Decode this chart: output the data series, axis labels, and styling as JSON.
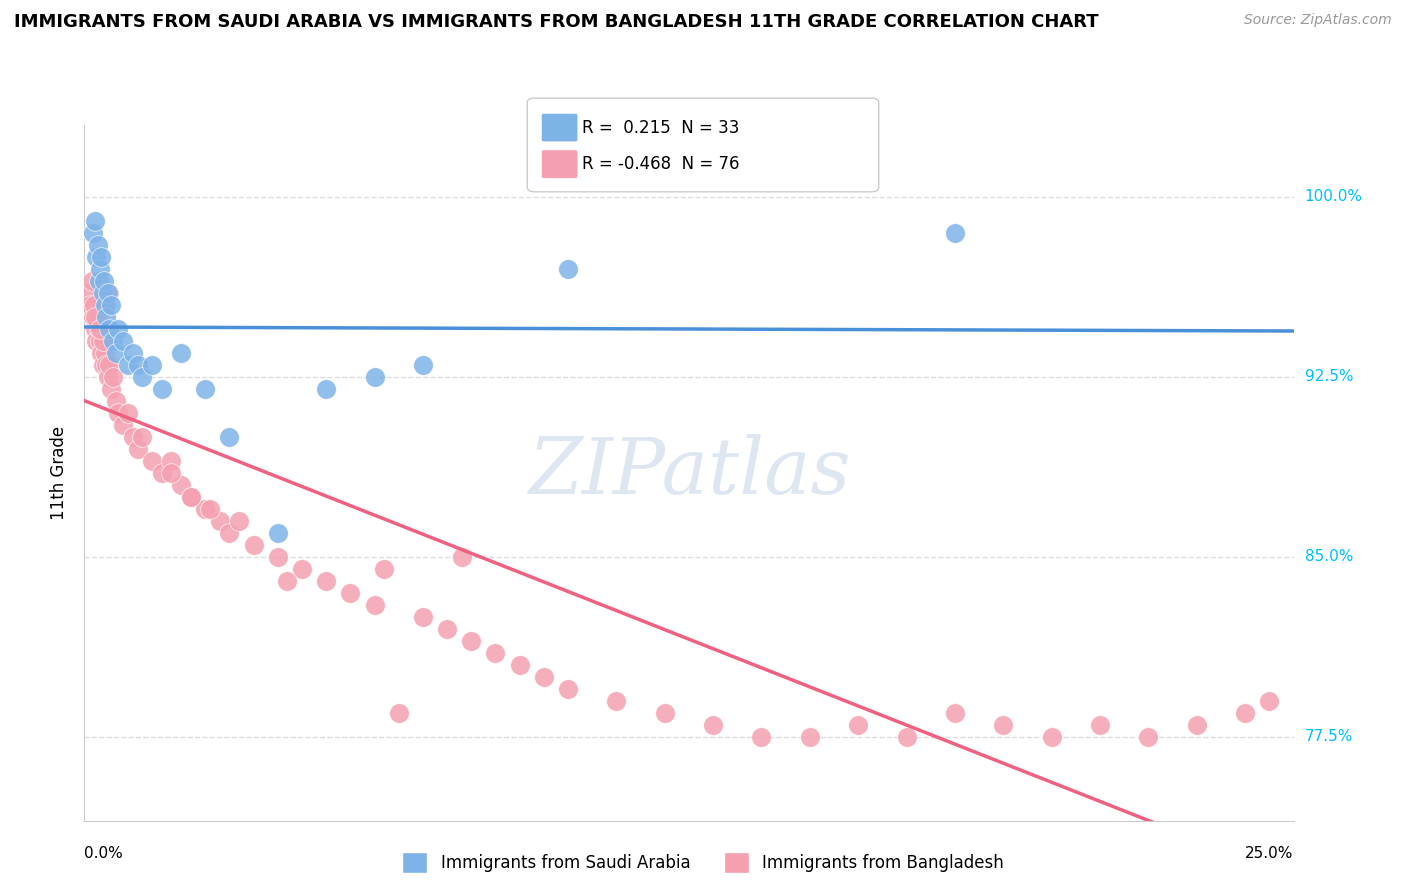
{
  "title": "IMMIGRANTS FROM SAUDI ARABIA VS IMMIGRANTS FROM BANGLADESH 11TH GRADE CORRELATION CHART",
  "source": "Source: ZipAtlas.com",
  "ylabel": "11th Grade",
  "y_ticks": [
    77.5,
    85.0,
    92.5,
    100.0
  ],
  "y_tick_labels": [
    "77.5%",
    "85.0%",
    "92.5%",
    "100.0%"
  ],
  "xlim": [
    0.0,
    25.0
  ],
  "ylim": [
    74.0,
    103.0
  ],
  "saudi_R": 0.215,
  "saudi_N": 33,
  "bangladesh_R": -0.468,
  "bangladesh_N": 76,
  "saudi_color": "#7EB3E8",
  "bangladesh_color": "#F4A0B0",
  "saudi_line_color": "#4A90D9",
  "bangladesh_line_color": "#F06080",
  "watermark": "ZIPatlas",
  "watermark_color": "#C8D8E8",
  "background_color": "#FFFFFF",
  "grid_color": "#DDDDDD",
  "saudi_x": [
    0.18,
    0.22,
    0.25,
    0.28,
    0.3,
    0.32,
    0.35,
    0.38,
    0.4,
    0.42,
    0.45,
    0.48,
    0.5,
    0.55,
    0.6,
    0.65,
    0.7,
    0.8,
    0.9,
    1.0,
    1.1,
    1.2,
    1.4,
    1.6,
    2.0,
    2.5,
    3.0,
    4.0,
    5.0,
    6.0,
    7.0,
    10.0,
    18.0
  ],
  "saudi_y": [
    98.5,
    99.0,
    97.5,
    98.0,
    96.5,
    97.0,
    97.5,
    96.0,
    96.5,
    95.5,
    95.0,
    96.0,
    94.5,
    95.5,
    94.0,
    93.5,
    94.5,
    94.0,
    93.0,
    93.5,
    93.0,
    92.5,
    93.0,
    92.0,
    93.5,
    92.0,
    90.0,
    86.0,
    92.0,
    92.5,
    93.0,
    97.0,
    98.5
  ],
  "bangladesh_x": [
    0.1,
    0.12,
    0.15,
    0.18,
    0.2,
    0.22,
    0.25,
    0.28,
    0.3,
    0.32,
    0.35,
    0.38,
    0.4,
    0.42,
    0.45,
    0.48,
    0.5,
    0.55,
    0.6,
    0.65,
    0.7,
    0.8,
    0.9,
    1.0,
    1.1,
    1.2,
    1.4,
    1.6,
    1.8,
    2.0,
    2.2,
    2.5,
    2.8,
    3.0,
    3.5,
    4.0,
    4.5,
    5.0,
    5.5,
    6.0,
    6.5,
    7.0,
    7.5,
    8.0,
    8.5,
    9.0,
    9.5,
    10.0,
    11.0,
    12.0,
    13.0,
    14.0,
    15.0,
    16.0,
    17.0,
    18.0,
    19.0,
    20.0,
    21.0,
    22.0,
    23.0,
    24.0,
    24.5,
    4.2,
    7.8,
    6.2,
    3.2,
    2.6,
    0.5,
    0.45,
    0.42,
    0.38,
    0.22,
    0.32,
    1.8,
    2.2
  ],
  "bangladesh_y": [
    96.0,
    95.5,
    96.5,
    95.0,
    95.5,
    94.5,
    94.0,
    95.0,
    94.5,
    94.0,
    93.5,
    93.0,
    94.0,
    93.5,
    93.0,
    92.5,
    93.0,
    92.0,
    92.5,
    91.5,
    91.0,
    90.5,
    91.0,
    90.0,
    89.5,
    90.0,
    89.0,
    88.5,
    89.0,
    88.0,
    87.5,
    87.0,
    86.5,
    86.0,
    85.5,
    85.0,
    84.5,
    84.0,
    83.5,
    83.0,
    78.5,
    82.5,
    82.0,
    81.5,
    81.0,
    80.5,
    80.0,
    79.5,
    79.0,
    78.5,
    78.0,
    77.5,
    77.5,
    78.0,
    77.5,
    78.5,
    78.0,
    77.5,
    78.0,
    77.5,
    78.0,
    78.5,
    79.0,
    84.0,
    85.0,
    84.5,
    86.5,
    87.0,
    96.0,
    95.5,
    94.5,
    94.0,
    95.0,
    94.5,
    88.5,
    87.5
  ],
  "legend_saudi_label": "Immigrants from Saudi Arabia",
  "legend_bangladesh_label": "Immigrants from Bangladesh"
}
